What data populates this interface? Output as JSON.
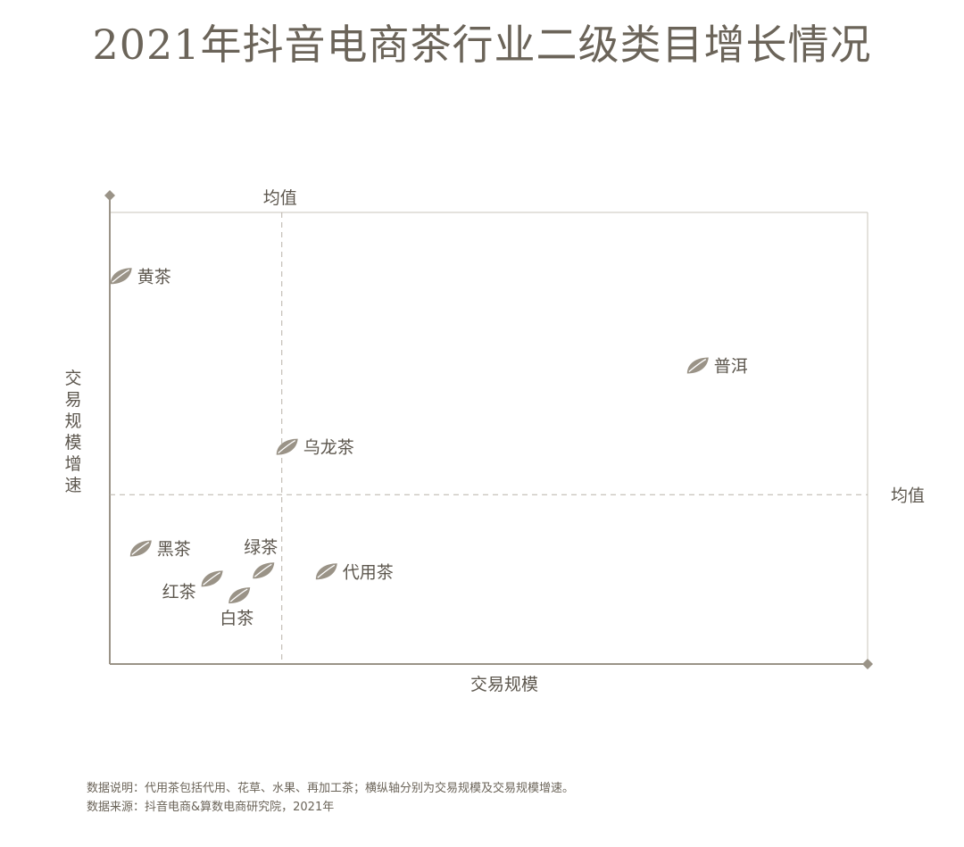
{
  "title": "2021年抖音电商茶行业二级类目增长情况",
  "chart_data": {
    "type": "scatter",
    "title": "2021年抖音电商茶行业二级类目增长情况",
    "xlabel": "交易规模",
    "ylabel": "交易规模增速",
    "xlim": [
      0,
      100
    ],
    "ylim": [
      0,
      100
    ],
    "mean_x": 22.7,
    "mean_y": 37.5,
    "mean_label": "均值",
    "grid": false,
    "points": [
      {
        "name": "黄茶",
        "x": 1.5,
        "y": 85.9,
        "label_side": "right"
      },
      {
        "name": "普洱",
        "x": 77.6,
        "y": 66.1,
        "label_side": "right"
      },
      {
        "name": "乌龙茶",
        "x": 23.4,
        "y": 48.1,
        "label_side": "right"
      },
      {
        "name": "黑茶",
        "x": 4.1,
        "y": 25.6,
        "label_side": "right"
      },
      {
        "name": "绿茶",
        "x": 20.3,
        "y": 20.7,
        "label_side": "above"
      },
      {
        "name": "代用茶",
        "x": 28.6,
        "y": 20.5,
        "label_side": "right"
      },
      {
        "name": "红茶",
        "x": 13.5,
        "y": 18.9,
        "label_side": "left-below"
      },
      {
        "name": "白茶",
        "x": 17.1,
        "y": 15.2,
        "label_side": "below"
      }
    ]
  },
  "footnotes": {
    "note1": "数据说明：代用茶包括代用、花草、水果、再加工茶；横纵轴分别为交易规模及交易规模增速。",
    "note2": "数据来源：抖音电商&算数电商研究院，2021年"
  },
  "colors": {
    "axis": "#9a9387",
    "leaf": "#9a9387",
    "text": "#5d574e",
    "background": "#ffffff"
  }
}
